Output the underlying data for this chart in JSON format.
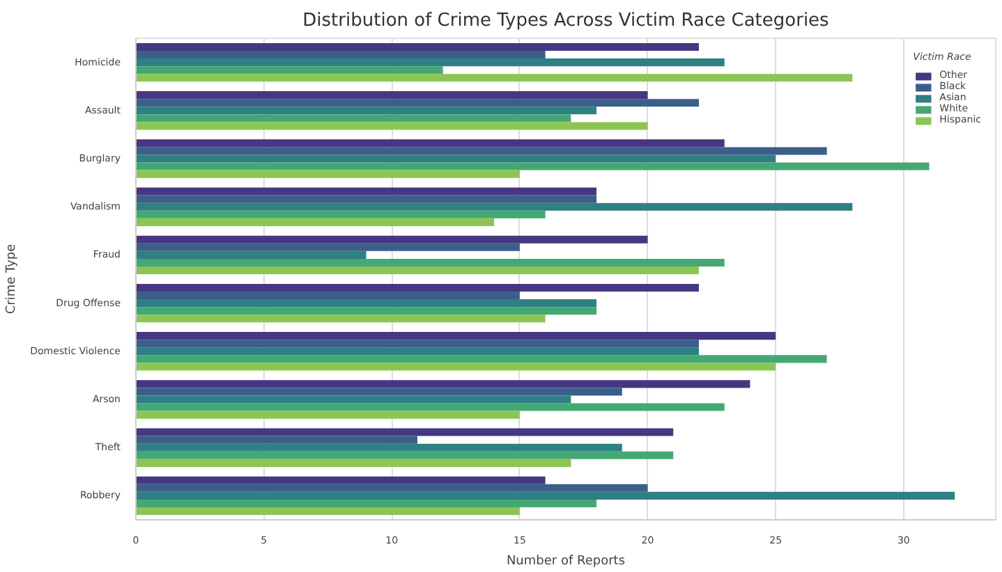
{
  "chart_data": {
    "type": "bar",
    "orientation": "horizontal",
    "title": "Distribution of Crime Types Across Victim Race Categories",
    "xlabel": "Number of Reports",
    "ylabel": "Crime Type",
    "legend_title": "Victim Race",
    "categories": [
      "Homicide",
      "Assault",
      "Burglary",
      "Vandalism",
      "Fraud",
      "Drug Offense",
      "Domestic Violence",
      "Arson",
      "Theft",
      "Robbery"
    ],
    "series": [
      {
        "name": "Other",
        "color": "#453781",
        "values": [
          22,
          20,
          23,
          18,
          20,
          22,
          25,
          24,
          21,
          16
        ]
      },
      {
        "name": "Black",
        "color": "#3b5f8a",
        "values": [
          16,
          22,
          27,
          18,
          15,
          15,
          22,
          19,
          11,
          20
        ]
      },
      {
        "name": "Asian",
        "color": "#2e8083",
        "values": [
          23,
          18,
          25,
          28,
          9,
          18,
          22,
          17,
          19,
          32
        ]
      },
      {
        "name": "White",
        "color": "#45a874",
        "values": [
          12,
          17,
          31,
          16,
          23,
          18,
          27,
          23,
          21,
          18
        ]
      },
      {
        "name": "Hispanic",
        "color": "#8dc555",
        "values": [
          28,
          20,
          15,
          14,
          22,
          16,
          25,
          15,
          17,
          15
        ]
      }
    ],
    "xlim": [
      0,
      33.6
    ],
    "xticks": [
      0,
      5,
      10,
      15,
      20,
      25,
      30
    ],
    "grid": "x",
    "legend": "top right"
  }
}
